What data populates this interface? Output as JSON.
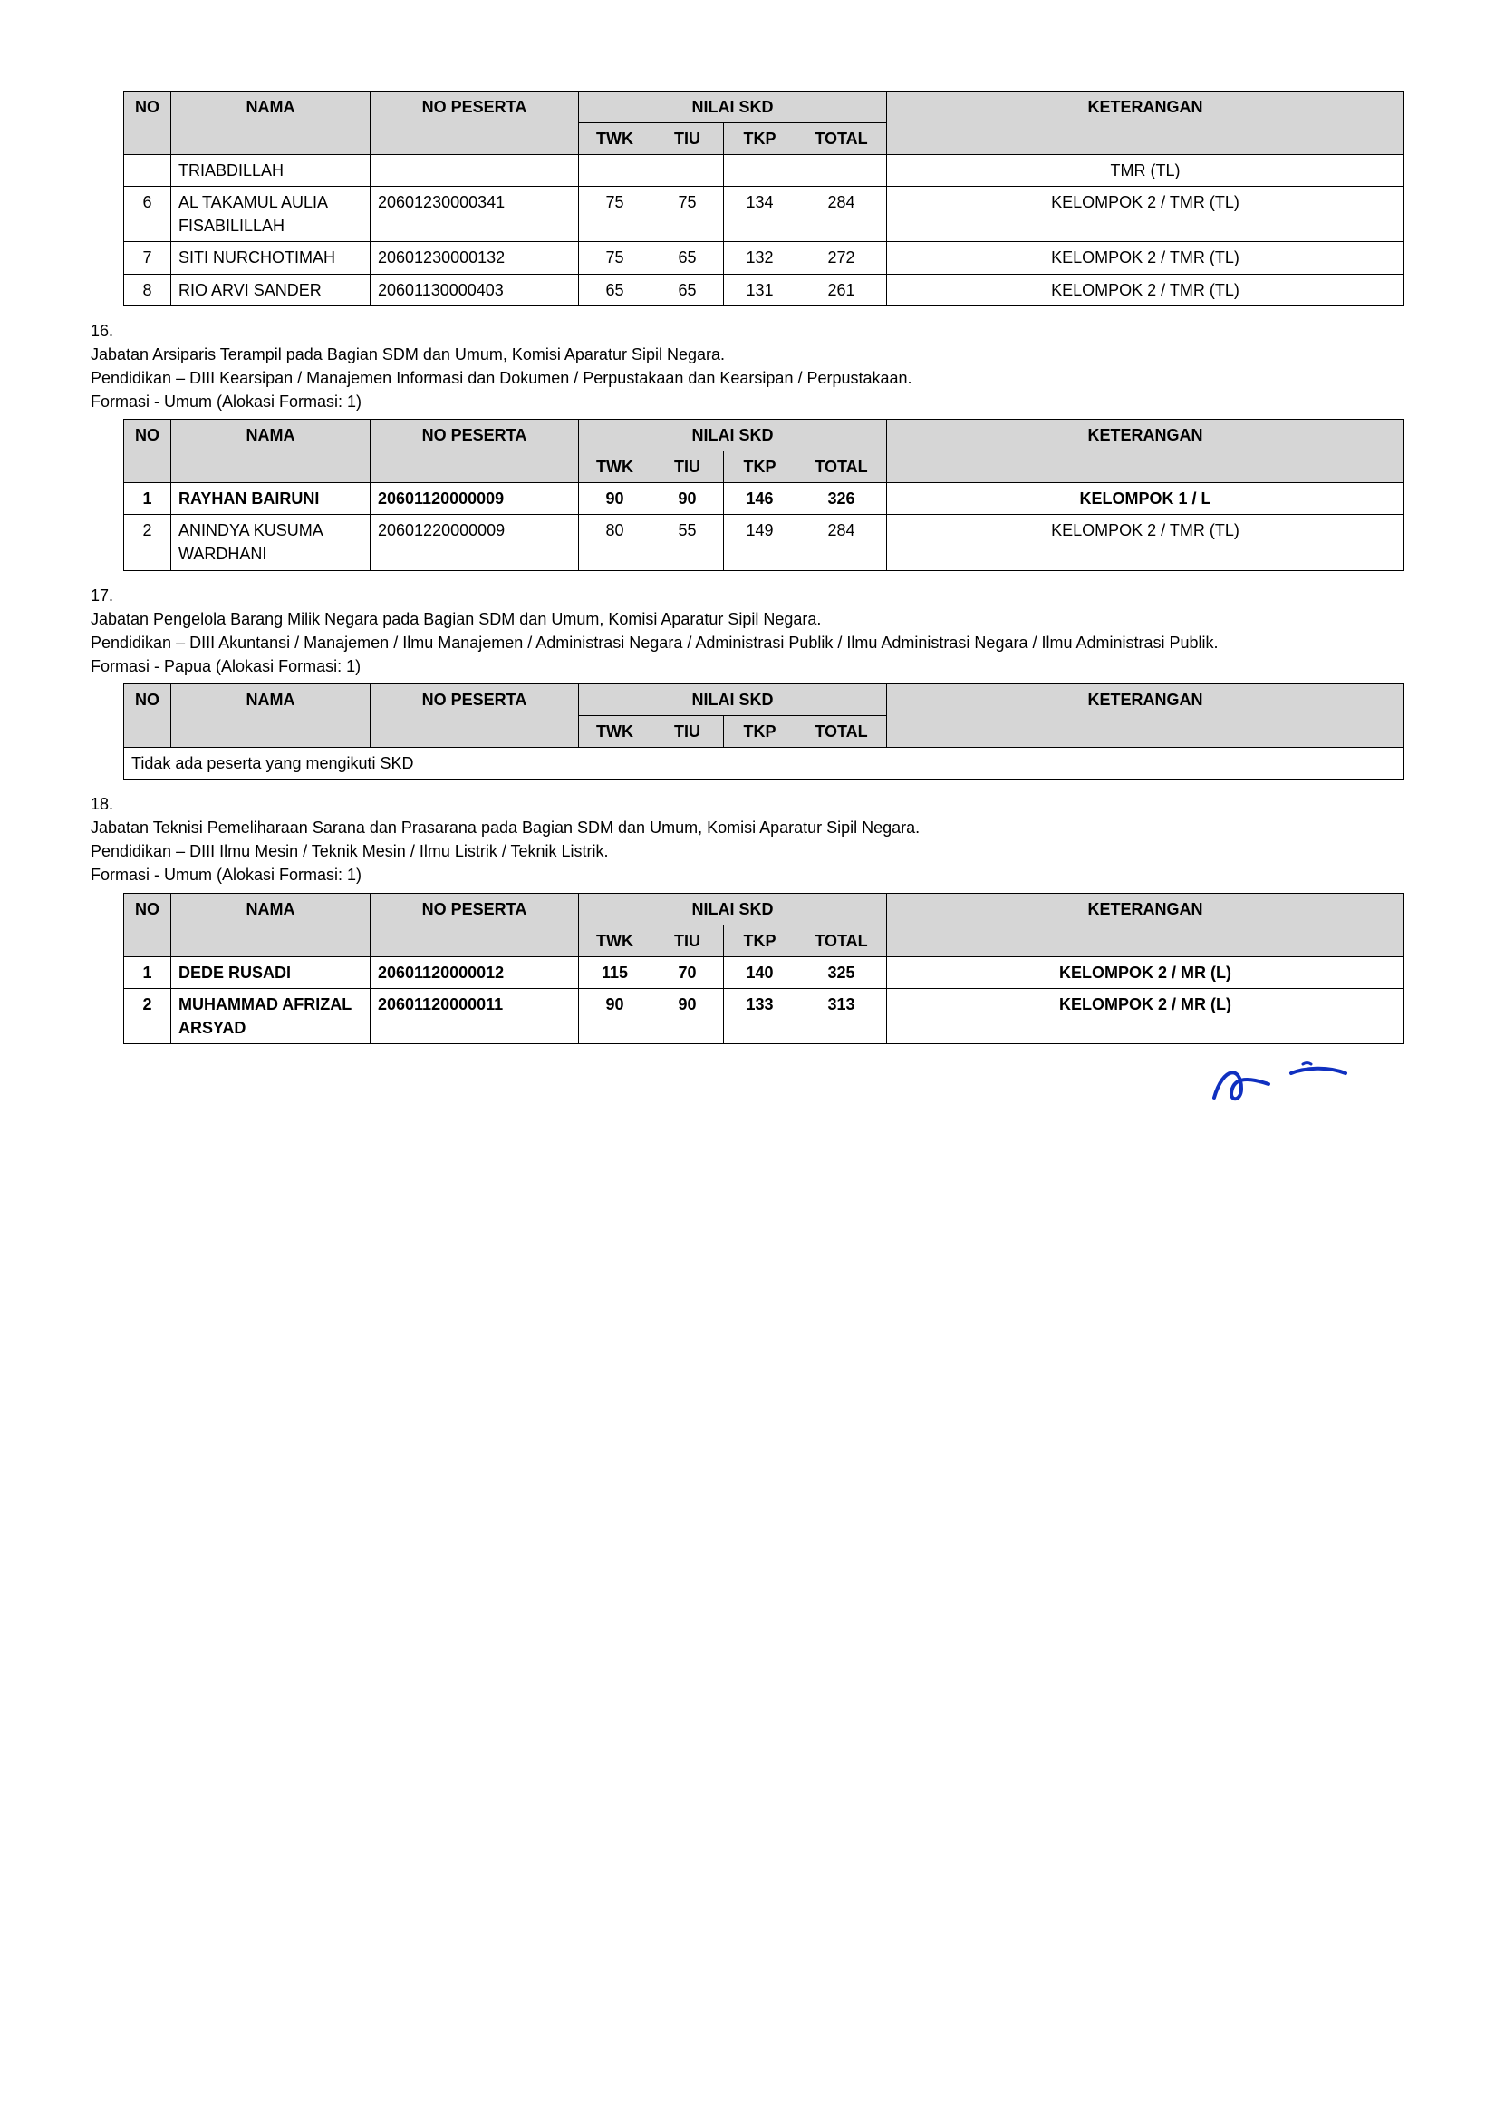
{
  "headers": {
    "no": "NO",
    "nama": "NAMA",
    "no_peserta": "NO PESERTA",
    "nilai_skd": "NILAI SKD",
    "twk": "TWK",
    "tiu": "TIU",
    "tkp": "TKP",
    "total": "TOTAL",
    "keterangan": "KETERANGAN"
  },
  "table_top": {
    "rows": [
      {
        "no": "",
        "nama": "TRIABDILLAH",
        "no_peserta": "",
        "twk": "",
        "tiu": "",
        "tkp": "",
        "total": "",
        "ket": "TMR (TL)"
      },
      {
        "no": "6",
        "nama": "AL TAKAMUL AULIA FISABILILLAH",
        "no_peserta": "20601230000341",
        "twk": "75",
        "tiu": "75",
        "tkp": "134",
        "total": "284",
        "ket": "KELOMPOK 2 / TMR (TL)"
      },
      {
        "no": "7",
        "nama": "SITI NURCHOTIMAH",
        "no_peserta": "20601230000132",
        "twk": "75",
        "tiu": "65",
        "tkp": "132",
        "total": "272",
        "ket": "KELOMPOK 2 / TMR (TL)"
      },
      {
        "no": "8",
        "nama": "RIO ARVI SANDER",
        "no_peserta": "20601130000403",
        "twk": "65",
        "tiu": "65",
        "tkp": "131",
        "total": "261",
        "ket": "KELOMPOK 2 / TMR (TL)"
      }
    ]
  },
  "section16": {
    "num": "16.",
    "line1": "Jabatan Arsiparis Terampil pada Bagian SDM dan Umum, Komisi Aparatur Sipil Negara.",
    "line2": "Pendidikan – DIII Kearsipan / Manajemen Informasi dan Dokumen / Perpustakaan dan Kearsipan / Perpustakaan.",
    "line3": "Formasi - Umum (Alokasi Formasi: 1)",
    "rows": [
      {
        "no": "1",
        "nama": "RAYHAN BAIRUNI",
        "no_peserta": "20601120000009",
        "twk": "90",
        "tiu": "90",
        "tkp": "146",
        "total": "326",
        "ket": "KELOMPOK 1 / L",
        "bold": true
      },
      {
        "no": "2",
        "nama": "ANINDYA KUSUMA WARDHANI",
        "no_peserta": "20601220000009",
        "twk": "80",
        "tiu": "55",
        "tkp": "149",
        "total": "284",
        "ket": "KELOMPOK 2 / TMR (TL)",
        "bold": false
      }
    ]
  },
  "section17": {
    "num": "17.",
    "line1": "Jabatan Pengelola Barang Milik Negara pada Bagian SDM dan Umum, Komisi Aparatur Sipil Negara.",
    "line2": "Pendidikan – DIII Akuntansi / Manajemen / Ilmu Manajemen / Administrasi Negara / Administrasi Publik / Ilmu Administrasi Negara / Ilmu Administrasi Publik.",
    "line3": "Formasi - Papua (Alokasi Formasi: 1)",
    "empty_text": "Tidak ada peserta yang mengikuti SKD"
  },
  "section18": {
    "num": "18.",
    "line1": "Jabatan Teknisi Pemeliharaan Sarana dan Prasarana pada Bagian SDM dan Umum, Komisi Aparatur Sipil Negara.",
    "line2": "Pendidikan – DIII Ilmu Mesin / Teknik Mesin / Ilmu Listrik / Teknik Listrik.",
    "line3": "Formasi - Umum (Alokasi Formasi: 1)",
    "rows": [
      {
        "no": "1",
        "nama": "DEDE RUSADI",
        "no_peserta": "20601120000012",
        "twk": "115",
        "tiu": "70",
        "tkp": "140",
        "total": "325",
        "ket": "KELOMPOK 2 / MR (L)",
        "bold": true
      },
      {
        "no": "2",
        "nama": "MUHAMMAD AFRIZAL ARSYAD",
        "no_peserta": "20601120000011",
        "twk": "90",
        "tiu": "90",
        "tkp": "133",
        "total": "313",
        "ket": "KELOMPOK 2 / MR (L)",
        "bold": true
      }
    ]
  }
}
